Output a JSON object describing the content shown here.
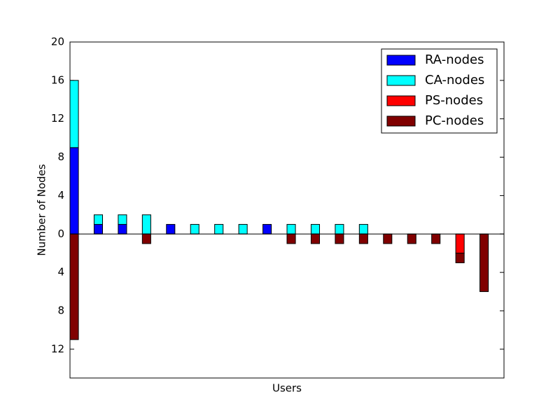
{
  "chart_data": {
    "type": "stacked_bar",
    "xlabel": "Users",
    "ylabel": "Number of Nodes",
    "ylim": [
      -15,
      20
    ],
    "yticks": [
      20,
      16,
      12,
      8,
      4,
      0,
      {
        "value": -4,
        "label": "4"
      },
      {
        "value": -8,
        "label": "8"
      },
      {
        "value": -12,
        "label": "12"
      }
    ],
    "legend": "upper right",
    "series": [
      {
        "name": "RA-nodes",
        "color": "#0000ff",
        "values": [
          9,
          1,
          1,
          0,
          1,
          0,
          0,
          0,
          1,
          0,
          0,
          0,
          0,
          0,
          0,
          0,
          0,
          0
        ]
      },
      {
        "name": "CA-nodes",
        "color": "#00ffff",
        "values": [
          7,
          1,
          1,
          2,
          0,
          1,
          1,
          1,
          0,
          1,
          1,
          1,
          1,
          0,
          0,
          0,
          0,
          0
        ]
      },
      {
        "name": "PS-nodes",
        "color": "#ff0000",
        "values": [
          0,
          0,
          0,
          0,
          0,
          0,
          0,
          0,
          0,
          0,
          0,
          0,
          0,
          0,
          0,
          0,
          -2,
          0
        ]
      },
      {
        "name": "PC-nodes",
        "color": "#800000",
        "values": [
          -11,
          0,
          0,
          -1,
          0,
          0,
          0,
          0,
          0,
          -1,
          -1,
          -1,
          -1,
          -1,
          -1,
          -1,
          -1,
          -6
        ]
      }
    ]
  }
}
